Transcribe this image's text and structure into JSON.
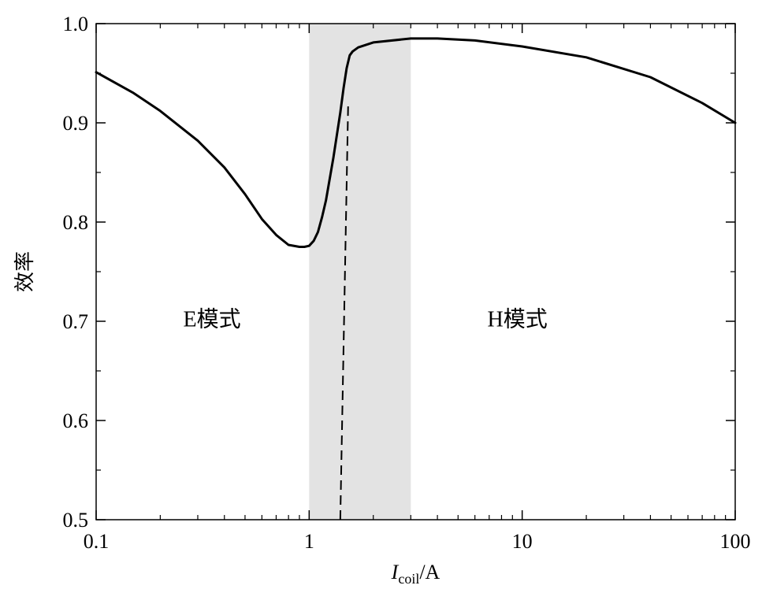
{
  "chart_data": {
    "type": "line",
    "xscale": "log",
    "xlim": [
      0.1,
      100
    ],
    "ylim": [
      0.5,
      1.0
    ],
    "xticks": [
      0.1,
      1,
      10,
      100
    ],
    "xtick_labels": [
      "0.1",
      "1",
      "10",
      "100"
    ],
    "yticks": [
      0.5,
      0.6,
      0.7,
      0.8,
      0.9,
      1.0
    ],
    "ytick_labels": [
      "0.5",
      "0.6",
      "0.7",
      "0.8",
      "0.9",
      "1.0"
    ],
    "xlabel_main": "I",
    "xlabel_sub": "coil",
    "xlabel_unit": "/A",
    "ylabel": "效率",
    "shaded_region": [
      1.0,
      3.0
    ],
    "vline_x": 1.4,
    "annotations": [
      {
        "text": "E模式",
        "x": 0.35,
        "y": 0.695
      },
      {
        "text": "H模式",
        "x": 9.5,
        "y": 0.695
      }
    ],
    "series": [
      {
        "x": [
          0.1,
          0.15,
          0.2,
          0.3,
          0.4,
          0.5,
          0.6,
          0.7,
          0.8,
          0.9,
          0.95,
          1.0,
          1.05,
          1.1,
          1.15,
          1.2,
          1.3,
          1.4,
          1.45,
          1.5,
          1.55,
          1.6,
          1.7,
          2.0,
          3.0,
          4.0,
          6.0,
          10.0,
          20.0,
          40.0,
          70.0,
          100.0
        ],
        "y": [
          0.951,
          0.93,
          0.912,
          0.882,
          0.855,
          0.828,
          0.803,
          0.787,
          0.777,
          0.775,
          0.775,
          0.776,
          0.781,
          0.79,
          0.805,
          0.822,
          0.865,
          0.91,
          0.935,
          0.955,
          0.968,
          0.972,
          0.976,
          0.981,
          0.985,
          0.985,
          0.983,
          0.977,
          0.966,
          0.946,
          0.92,
          0.9
        ]
      }
    ]
  }
}
